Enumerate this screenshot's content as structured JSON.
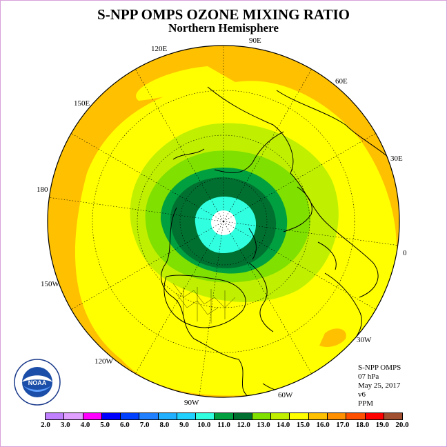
{
  "title": "S-NPP OMPS OZONE MIXING RATIO",
  "subtitle": "Northern Hemisphere",
  "longitude_labels": [
    {
      "id": "lon-90e",
      "text": "90E"
    },
    {
      "id": "lon-120e",
      "text": "120E"
    },
    {
      "id": "lon-60e",
      "text": "60E"
    },
    {
      "id": "lon-150e",
      "text": "150E"
    },
    {
      "id": "lon-30e",
      "text": "30E"
    },
    {
      "id": "lon-180",
      "text": "180"
    },
    {
      "id": "lon-0",
      "text": "0"
    },
    {
      "id": "lon-150w",
      "text": "150W"
    },
    {
      "id": "lon-30w",
      "text": "30W"
    },
    {
      "id": "lon-120w",
      "text": "120W"
    },
    {
      "id": "lon-60w",
      "text": "60W"
    },
    {
      "id": "lon-90w",
      "text": "90W"
    }
  ],
  "info": {
    "instrument": "S-NPP OMPS",
    "level": "07 hPa",
    "date": "May 25, 2017",
    "version": "v6",
    "units": "PPM"
  },
  "logo": {
    "text": "NOAA",
    "ring_text": "NATIONAL OCEANIC AND ATMOSPHERIC ADMINISTRATION · U.S. DEPARTMENT OF COMMERCE"
  },
  "colorbar": {
    "ticks": [
      "2.0",
      "3.0",
      "4.0",
      "5.0",
      "6.0",
      "7.0",
      "8.0",
      "9.0",
      "10.0",
      "11.0",
      "12.0",
      "13.0",
      "14.0",
      "15.0",
      "16.0",
      "17.0",
      "18.0",
      "19.0",
      "20.0"
    ],
    "colors": [
      "#c080ff",
      "#e0a0ff",
      "#ff00ff",
      "#0000ff",
      "#0040ff",
      "#2080ff",
      "#20b0ff",
      "#20d0ff",
      "#30ffe0",
      "#00a040",
      "#007030",
      "#80e000",
      "#c0f000",
      "#ffff00",
      "#ffc000",
      "#ff9000",
      "#ff5000",
      "#ff0000",
      "#a05030"
    ]
  },
  "map_colors": {
    "outer_orange": "#ffc000",
    "yellow": "#ffff00",
    "light_green": "#c0f000",
    "mid_green": "#80e000",
    "dark_green": "#00a040",
    "darkest_green": "#007030",
    "cyan": "#30ffe0",
    "pole_white": "#ffffff"
  }
}
